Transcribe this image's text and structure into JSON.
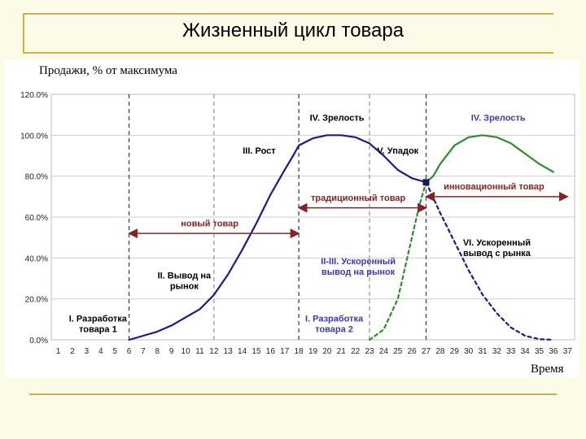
{
  "slide": {
    "title": "Жизненный цикл товара"
  },
  "chart_data": {
    "type": "line",
    "ylabel": "Продажи, % от максимума",
    "xlabel": "Время",
    "x": [
      1,
      2,
      3,
      4,
      5,
      6,
      7,
      8,
      9,
      10,
      11,
      12,
      13,
      14,
      15,
      16,
      17,
      18,
      19,
      20,
      21,
      22,
      23,
      24,
      25,
      26,
      27,
      28,
      29,
      30,
      31,
      32,
      33,
      34,
      35,
      36,
      37
    ],
    "xlim": [
      1,
      37
    ],
    "ylim": [
      0,
      120
    ],
    "yticks": [
      "0.0%",
      "20.0%",
      "40.0%",
      "60.0%",
      "80.0%",
      "100.0%",
      "120.0%"
    ],
    "yticks_values": [
      0,
      20,
      40,
      60,
      80,
      100,
      120
    ],
    "grid": "horizontal",
    "series": [
      {
        "name": "",
        "color": "#1a1a8c",
        "style": "solid",
        "points": [
          [
            6,
            0
          ],
          [
            7,
            2
          ],
          [
            8,
            4
          ],
          [
            9,
            7
          ],
          [
            10,
            11
          ],
          [
            11,
            15
          ],
          [
            12,
            22
          ],
          [
            13,
            32
          ],
          [
            14,
            44
          ],
          [
            15,
            57
          ],
          [
            16,
            71
          ],
          [
            17,
            83
          ],
          [
            17.6,
            90
          ],
          [
            18,
            95
          ],
          [
            19,
            98.5
          ],
          [
            20,
            100
          ],
          [
            21,
            100
          ],
          [
            22,
            99
          ],
          [
            23,
            96
          ],
          [
            24,
            90
          ],
          [
            25,
            83
          ],
          [
            26,
            79
          ],
          [
            27,
            77
          ]
        ]
      },
      {
        "name": "",
        "color": "#2e8b2e",
        "style": "solid",
        "points": [
          [
            27,
            77
          ],
          [
            27.5,
            80
          ],
          [
            28,
            86
          ],
          [
            29,
            95
          ],
          [
            30,
            99
          ],
          [
            31,
            100
          ],
          [
            32,
            99
          ],
          [
            33,
            96
          ],
          [
            34,
            91
          ],
          [
            35,
            86
          ],
          [
            36,
            82
          ]
        ]
      },
      {
        "name": "",
        "color": "#2e8b2e",
        "style": "dashed",
        "points": [
          [
            23,
            0
          ],
          [
            24,
            5
          ],
          [
            25,
            20
          ],
          [
            26,
            50
          ],
          [
            26.5,
            65
          ],
          [
            27,
            77
          ]
        ]
      },
      {
        "name": "",
        "color": "#1a1a8c",
        "style": "dashed",
        "points": [
          [
            27,
            77
          ],
          [
            28,
            62
          ],
          [
            29,
            48
          ],
          [
            30,
            34
          ],
          [
            31,
            22
          ],
          [
            32,
            13
          ],
          [
            33,
            6
          ],
          [
            34,
            2
          ],
          [
            35,
            0.3
          ],
          [
            36,
            0
          ]
        ]
      }
    ],
    "vlines": [
      {
        "x": 6,
        "color": "#444444",
        "style": "dashed"
      },
      {
        "x": 12,
        "color": "#999999",
        "style": "dashed"
      },
      {
        "x": 18,
        "color": "#444444",
        "style": "dashed"
      },
      {
        "x": 23,
        "color": "#999999",
        "style": "dashed"
      },
      {
        "x": 27,
        "color": "#444444",
        "style": "dashed"
      }
    ],
    "marker": {
      "x": 27,
      "y": 77
    },
    "arrows": [
      {
        "from": 6,
        "to": 18,
        "y": 52,
        "color": "#8b2222"
      },
      {
        "from": 18,
        "to": 27,
        "y": 64.5,
        "color": "#8b2222"
      },
      {
        "from": 27,
        "to": 37,
        "y": 70,
        "color": "#8b2222"
      }
    ],
    "annotations": [
      {
        "text": "новый товар",
        "x": 11.7,
        "y": 55.5,
        "color": "#8b2222",
        "lines": [
          "новый товар"
        ]
      },
      {
        "text": "традиционный товар",
        "x": 22.2,
        "y": 68,
        "color": "#8b2222",
        "lines": [
          "традиционный товар"
        ]
      },
      {
        "text": "инновационный товар",
        "x": 31.8,
        "y": 73.5,
        "color": "#8b2222",
        "lines": [
          "инновационный товар"
        ]
      },
      {
        "text": "I. Разработка товара 1",
        "x": 3.8,
        "y": 9,
        "color": "#000000",
        "lines": [
          "I. Разработка",
          "товара 1"
        ]
      },
      {
        "text": "II. Вывод на рынок",
        "x": 9.9,
        "y": 30,
        "color": "#000000",
        "lines": [
          "II. Вывод на",
          "рынок"
        ]
      },
      {
        "text": "III. Рост",
        "x": 15.2,
        "y": 91,
        "color": "#000000",
        "lines": [
          "III. Рост"
        ]
      },
      {
        "text": "IV. Зрелость",
        "x": 20.7,
        "y": 107,
        "color": "#000000",
        "lines": [
          "IV. Зрелость"
        ]
      },
      {
        "text": "V. Упадок",
        "x": 25.0,
        "y": 91,
        "color": "#000000",
        "lines": [
          "V. Упадок"
        ]
      },
      {
        "text": "IV. Зрелость",
        "x": 32.1,
        "y": 107,
        "color": "#3a3ab8",
        "lines": [
          "IV. Зрелость"
        ]
      },
      {
        "text": "I. Разработка товара 2",
        "x": 20.5,
        "y": 9,
        "color": "#3a3ab8",
        "lines": [
          "I. Разработка",
          "товара 2"
        ]
      },
      {
        "text": "II-III. Ускоренный вывод на рынок",
        "x": 22.2,
        "y": 37,
        "color": "#3a3ab8",
        "lines": [
          "II-III. Ускоренный",
          "вывод на рынок"
        ]
      },
      {
        "text": "VI. Ускоренный вывод с рынка",
        "x": 32.0,
        "y": 46,
        "color": "#000000",
        "lines": [
          "VI. Ускоренный",
          "вывод с рынка"
        ]
      }
    ]
  }
}
